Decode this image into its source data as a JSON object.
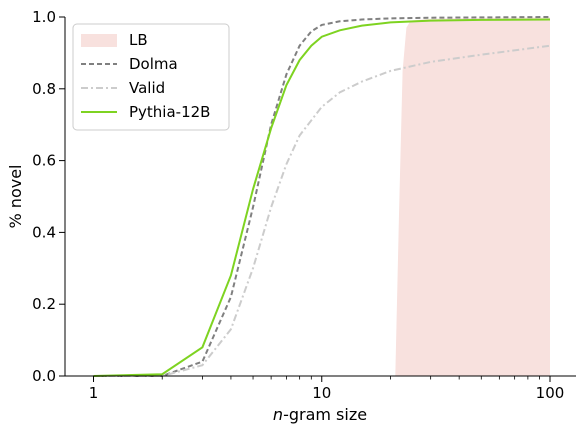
{
  "chart_data": {
    "type": "line",
    "xlabel_prefix": "n",
    "xlabel_suffix": "-gram size",
    "ylabel": "% novel",
    "xscale": "log",
    "xlim": [
      0.75,
      130
    ],
    "ylim": [
      0,
      1.0
    ],
    "x_ticks": [
      1,
      10,
      100
    ],
    "x_tick_labels": [
      "1",
      "10",
      "100"
    ],
    "y_ticks": [
      0.0,
      0.2,
      0.4,
      0.6,
      0.8,
      1.0
    ],
    "y_tick_labels": [
      "0.0",
      "0.2",
      "0.4",
      "0.6",
      "0.8",
      "1.0"
    ],
    "grid": false,
    "legend_position": "top-left",
    "legend": [
      {
        "label": "LB",
        "kind": "area",
        "color": "#f8e1de"
      },
      {
        "label": "Dolma",
        "kind": "line",
        "dash": "dashed",
        "color": "#808080"
      },
      {
        "label": "Valid",
        "kind": "line",
        "dash": "dashdot",
        "color": "#cccccc"
      },
      {
        "label": "Pythia-12B",
        "kind": "line",
        "dash": "solid",
        "color": "#7ed321"
      }
    ],
    "shaded_region": {
      "name": "LB",
      "color": "#f8e1de",
      "points": [
        [
          21,
          0.0
        ],
        [
          21.8,
          0.45
        ],
        [
          22.6,
          0.85
        ],
        [
          23.5,
          0.97
        ],
        [
          24.5,
          0.99
        ],
        [
          30,
          0.995
        ],
        [
          50,
          0.998
        ],
        [
          100,
          0.999
        ]
      ]
    },
    "series": [
      {
        "name": "Dolma",
        "color": "#808080",
        "dash": "dashed",
        "x": [
          1,
          2,
          3,
          4,
          5,
          6,
          7,
          8,
          9,
          10,
          12,
          15,
          20,
          30,
          50,
          100
        ],
        "y": [
          0.0,
          0.0,
          0.04,
          0.22,
          0.47,
          0.7,
          0.84,
          0.92,
          0.96,
          0.978,
          0.988,
          0.993,
          0.996,
          0.998,
          0.999,
          1.0
        ]
      },
      {
        "name": "Valid",
        "color": "#cccccc",
        "dash": "dashdot",
        "x": [
          1,
          2,
          3,
          4,
          5,
          6,
          7,
          8,
          10,
          12,
          15,
          20,
          30,
          50,
          100
        ],
        "y": [
          0.0,
          0.0,
          0.03,
          0.13,
          0.3,
          0.47,
          0.59,
          0.67,
          0.75,
          0.79,
          0.82,
          0.85,
          0.875,
          0.895,
          0.92
        ]
      },
      {
        "name": "Pythia-12B",
        "color": "#7ed321",
        "dash": "solid",
        "x": [
          1,
          2,
          3,
          4,
          5,
          6,
          7,
          8,
          9,
          10,
          12,
          15,
          20,
          30,
          50,
          100
        ],
        "y": [
          0.0,
          0.005,
          0.08,
          0.28,
          0.52,
          0.69,
          0.81,
          0.88,
          0.92,
          0.945,
          0.963,
          0.976,
          0.985,
          0.99,
          0.992,
          0.993
        ]
      }
    ]
  }
}
